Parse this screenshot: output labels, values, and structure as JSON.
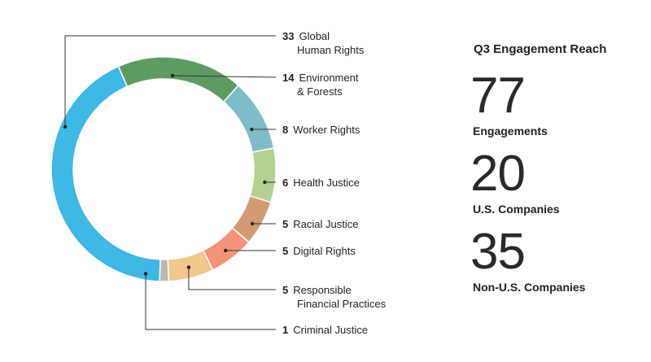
{
  "chart_data": {
    "type": "pie",
    "variant": "donut",
    "categories": [
      "Global Human Rights",
      "Environment & Forests",
      "Worker Rights",
      "Health Justice",
      "Racial Justice",
      "Digital Rights",
      "Responsible Financial Practices",
      "Criminal Justice"
    ],
    "values": [
      33,
      14,
      8,
      6,
      5,
      5,
      5,
      1
    ],
    "labels": [
      {
        "count": "33",
        "lines": [
          "Global",
          "Human Rights"
        ]
      },
      {
        "count": "14",
        "lines": [
          "Environment",
          "& Forests"
        ]
      },
      {
        "count": "8",
        "lines": [
          "Worker Rights"
        ]
      },
      {
        "count": "6",
        "lines": [
          "Health Justice"
        ]
      },
      {
        "count": "5",
        "lines": [
          "Racial Justice"
        ]
      },
      {
        "count": "5",
        "lines": [
          "Digital Rights"
        ]
      },
      {
        "count": "5",
        "lines": [
          "Responsible",
          "Financial Practices"
        ]
      },
      {
        "count": "1",
        "lines": [
          "Criminal Justice"
        ]
      }
    ],
    "colors": [
      "#3db7e4",
      "#5e9b62",
      "#80bcc8",
      "#b2d08f",
      "#d39b74",
      "#f4937a",
      "#f0c88d",
      "#b7b7b7"
    ],
    "legend": "right"
  },
  "summary": {
    "title": "Q3 Engagement Reach",
    "stats": [
      {
        "value": "77",
        "label": "Engagements"
      },
      {
        "value": "20",
        "label": "U.S. Companies"
      },
      {
        "value": "35",
        "label": "Non-U.S. Companies"
      }
    ]
  }
}
